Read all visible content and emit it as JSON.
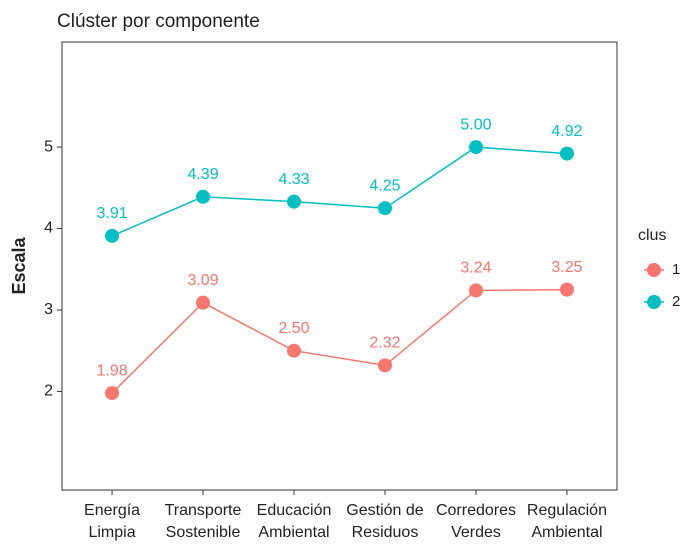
{
  "chart_data": {
    "type": "line",
    "title": "Clúster por componente",
    "ylabel": "Escala",
    "categories": [
      [
        "Energía",
        "Limpia"
      ],
      [
        "Transporte",
        "Sostenible"
      ],
      [
        "Educación",
        "Ambiental"
      ],
      [
        "Gestión de",
        "Residuos"
      ],
      [
        "Corredores",
        "Verdes"
      ],
      [
        "Regulación",
        "Ambiental"
      ]
    ],
    "series": [
      {
        "name": "1",
        "color": "#F8766D",
        "values": [
          1.98,
          3.09,
          2.5,
          2.32,
          3.24,
          3.25
        ],
        "value_labels": [
          "1.98",
          "3.09",
          "2.50",
          "2.32",
          "3.24",
          "3.25"
        ]
      },
      {
        "name": "2",
        "color": "#00BFC4",
        "values": [
          3.91,
          4.39,
          4.33,
          4.25,
          5,
          4.92
        ],
        "value_labels": [
          "3.91",
          "4.39",
          "4.33",
          "4.25",
          "5.00",
          "4.92"
        ]
      }
    ],
    "legend_title": "clus",
    "legend": "right",
    "ylim": [
      0.79,
      6.29
    ],
    "yticks": [
      2,
      3,
      4,
      5
    ],
    "grid": false
  }
}
